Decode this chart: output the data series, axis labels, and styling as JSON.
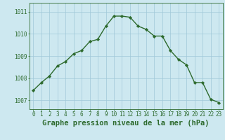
{
  "x": [
    0,
    1,
    2,
    3,
    4,
    5,
    6,
    7,
    8,
    9,
    10,
    11,
    12,
    13,
    14,
    15,
    16,
    17,
    18,
    19,
    20,
    21,
    22,
    23
  ],
  "y": [
    1007.45,
    1007.8,
    1008.1,
    1008.55,
    1008.75,
    1009.1,
    1009.25,
    1009.65,
    1009.75,
    1010.35,
    1010.8,
    1010.8,
    1010.75,
    1010.35,
    1010.2,
    1009.9,
    1009.9,
    1009.25,
    1008.85,
    1008.6,
    1007.8,
    1007.8,
    1007.05,
    1006.9
  ],
  "line_color": "#2d6a2d",
  "marker": "D",
  "marker_size": 2.2,
  "bg_color": "#cde8f0",
  "grid_color": "#a0c8d8",
  "axis_color": "#2d6a2d",
  "xlabel": "Graphe pression niveau de la mer (hPa)",
  "xlabel_fontsize": 7.5,
  "title_color": "#2d6a2d",
  "ylim": [
    1006.6,
    1011.4
  ],
  "yticks": [
    1007,
    1008,
    1009,
    1010,
    1011
  ],
  "xlim": [
    -0.5,
    23.5
  ],
  "xticks": [
    0,
    1,
    2,
    3,
    4,
    5,
    6,
    7,
    8,
    9,
    10,
    11,
    12,
    13,
    14,
    15,
    16,
    17,
    18,
    19,
    20,
    21,
    22,
    23
  ],
  "tick_fontsize": 5.5,
  "line_width": 1.0
}
